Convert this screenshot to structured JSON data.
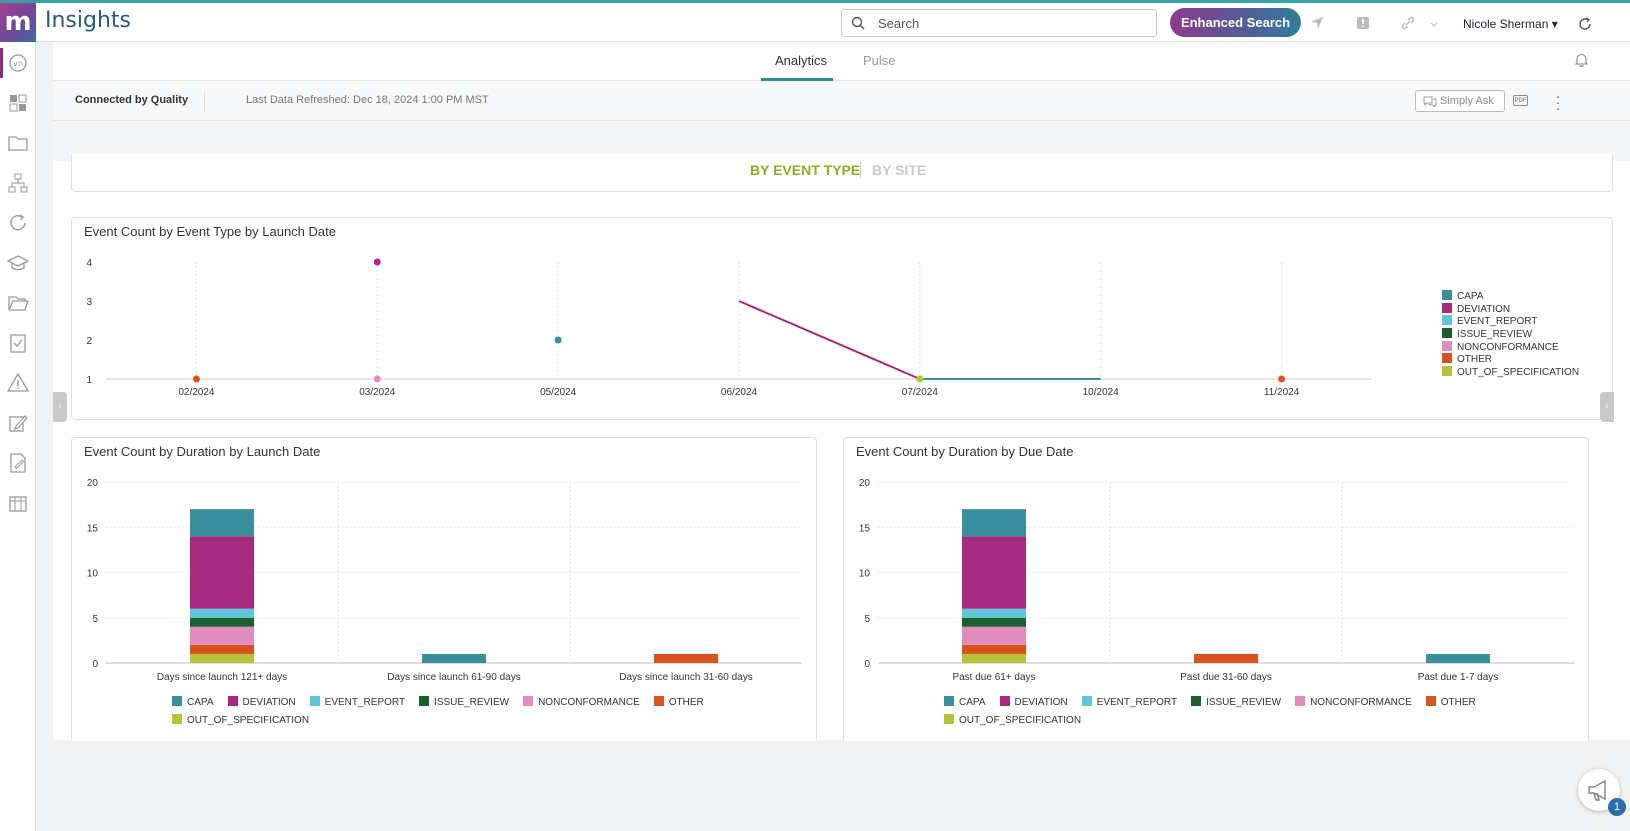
{
  "app": {
    "title": "Insights"
  },
  "header": {
    "search_placeholder": "Search",
    "enhanced_search_label": "Enhanced Search",
    "user_name": "Nicole Sherman"
  },
  "tabs": [
    {
      "label": "Analytics",
      "active": true
    },
    {
      "label": "Pulse",
      "active": false
    }
  ],
  "dashboard": {
    "title": "Connected by Quality",
    "last_refreshed": "Last Data Refreshed: Dec 18, 2024 1:00 PM MST",
    "simply_ask_label": "Simply Ask",
    "pdf_label": "PDF"
  },
  "view_toggle": {
    "by_event_type": "BY EVENT TYPE",
    "by_site": "BY SITE",
    "active": "by_event_type"
  },
  "colors": {
    "CAPA": "#3b8f9c",
    "DEVIATION": "#a62a7d",
    "EVENT_REPORT": "#5fc6d8",
    "ISSUE_REVIEW": "#1e5e2c",
    "NONCONFORMANCE": "#e18cc1",
    "OTHER": "#d9531e",
    "OUT_OF_SPECIFICATION": "#b8c33c"
  },
  "chart_data": [
    {
      "type": "line",
      "title": "Event Count by Event Type by Launch Date",
      "categories": [
        "02/2024",
        "03/2024",
        "05/2024",
        "06/2024",
        "07/2024",
        "10/2024",
        "11/2024"
      ],
      "ylim": [
        1,
        4
      ],
      "yticks": [
        1,
        2,
        3,
        4
      ],
      "legend": "right",
      "series": [
        {
          "name": "CAPA",
          "values": [
            null,
            null,
            2,
            null,
            1,
            1,
            null
          ]
        },
        {
          "name": "DEVIATION",
          "values": [
            null,
            4,
            null,
            3,
            1,
            null,
            null
          ]
        },
        {
          "name": "EVENT_REPORT",
          "values": [
            null,
            null,
            null,
            null,
            null,
            null,
            null
          ]
        },
        {
          "name": "ISSUE_REVIEW",
          "values": [
            null,
            null,
            null,
            null,
            null,
            null,
            null
          ]
        },
        {
          "name": "NONCONFORMANCE",
          "values": [
            null,
            1,
            null,
            null,
            null,
            null,
            null
          ]
        },
        {
          "name": "OTHER",
          "values": [
            1,
            null,
            null,
            null,
            null,
            null,
            1
          ]
        },
        {
          "name": "OUT_OF_SPECIFICATION",
          "values": [
            null,
            null,
            null,
            null,
            1,
            null,
            null
          ]
        }
      ]
    },
    {
      "type": "bar",
      "stacked": true,
      "title": "Event Count by Duration by Launch Date",
      "categories": [
        "Days since launch 121+ days",
        "Days since launch 61-90 days",
        "Days since launch 31-60 days"
      ],
      "ylim": [
        0,
        20
      ],
      "yticks": [
        0,
        5,
        10,
        15,
        20
      ],
      "legend": "bottom",
      "series": [
        {
          "name": "OUT_OF_SPECIFICATION",
          "values": [
            1,
            0,
            0
          ]
        },
        {
          "name": "OTHER",
          "values": [
            1,
            0,
            1
          ]
        },
        {
          "name": "NONCONFORMANCE",
          "values": [
            2,
            0,
            0
          ]
        },
        {
          "name": "ISSUE_REVIEW",
          "values": [
            1,
            0,
            0
          ]
        },
        {
          "name": "EVENT_REPORT",
          "values": [
            1,
            0,
            0
          ]
        },
        {
          "name": "DEVIATION",
          "values": [
            8,
            0,
            0
          ]
        },
        {
          "name": "CAPA",
          "values": [
            3,
            1,
            0
          ]
        }
      ]
    },
    {
      "type": "bar",
      "stacked": true,
      "title": "Event Count by Duration by Due Date",
      "categories": [
        "Past due 61+ days",
        "Past due 31-60 days",
        "Past due 1-7 days"
      ],
      "ylim": [
        0,
        20
      ],
      "yticks": [
        0,
        5,
        10,
        15,
        20
      ],
      "legend": "bottom",
      "series": [
        {
          "name": "OUT_OF_SPECIFICATION",
          "values": [
            1,
            0,
            0
          ]
        },
        {
          "name": "OTHER",
          "values": [
            1,
            1,
            0
          ]
        },
        {
          "name": "NONCONFORMANCE",
          "values": [
            2,
            0,
            0
          ]
        },
        {
          "name": "ISSUE_REVIEW",
          "values": [
            1,
            0,
            0
          ]
        },
        {
          "name": "EVENT_REPORT",
          "values": [
            1,
            0,
            0
          ]
        },
        {
          "name": "DEVIATION",
          "values": [
            8,
            0,
            0
          ]
        },
        {
          "name": "CAPA",
          "values": [
            3,
            0,
            1
          ]
        }
      ]
    }
  ],
  "legend_order": [
    "CAPA",
    "DEVIATION",
    "EVENT_REPORT",
    "ISSUE_REVIEW",
    "NONCONFORMANCE",
    "OTHER",
    "OUT_OF_SPECIFICATION"
  ],
  "notifications": {
    "count": "1"
  }
}
